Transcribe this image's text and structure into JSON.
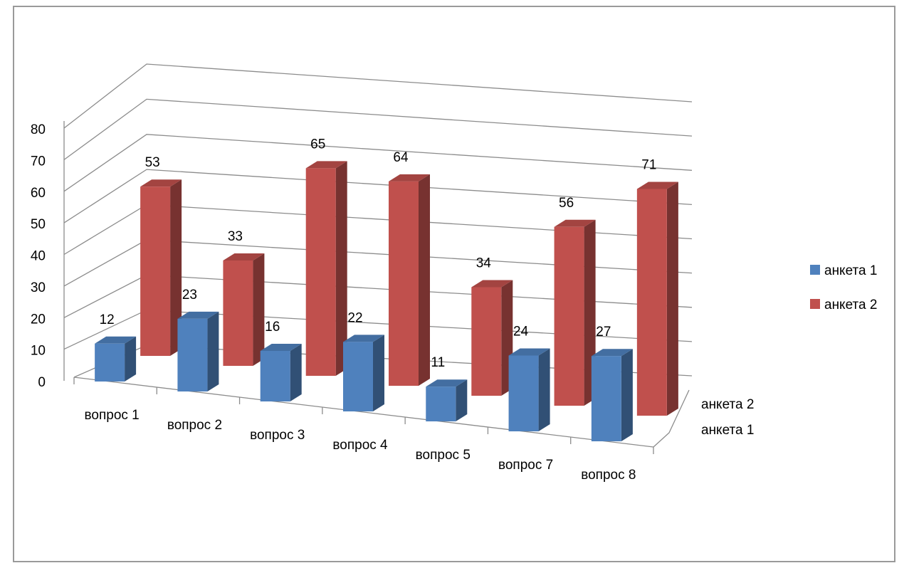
{
  "chart_data": {
    "type": "bar",
    "categories": [
      "вопрос 1",
      "вопрос 2",
      "вопрос 3",
      "вопрос 4",
      "вопрос 5",
      "вопрос 7",
      "вопрос 8"
    ],
    "series": [
      {
        "name": "анкета 1",
        "values": [
          12,
          23,
          16,
          22,
          11,
          24,
          27
        ],
        "color": "#4F81BD"
      },
      {
        "name": "анкета 2",
        "values": [
          53,
          33,
          65,
          64,
          34,
          56,
          71
        ],
        "color": "#C0504D"
      }
    ],
    "depth_labels": [
      "анкета 2",
      "анкета 1"
    ],
    "y_ticks": [
      0,
      10,
      20,
      30,
      40,
      50,
      60,
      70,
      80
    ],
    "ylim": [
      0,
      80
    ],
    "legend_position": "right",
    "grid": true
  }
}
